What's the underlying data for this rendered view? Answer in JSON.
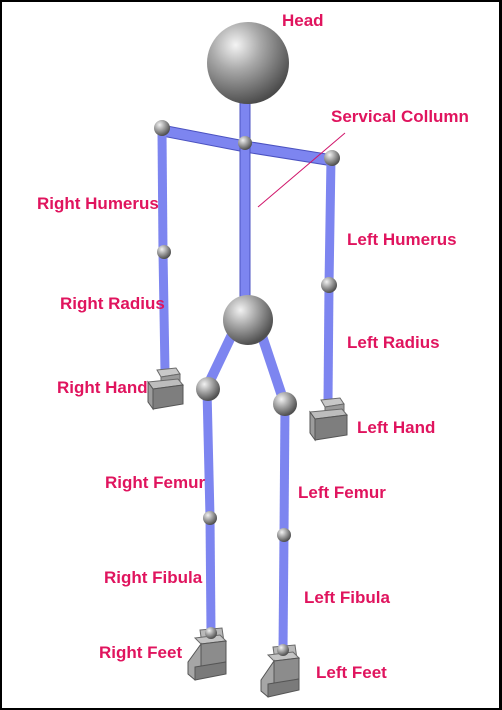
{
  "colors": {
    "label": "#e0145e",
    "bone": "#7d85f0",
    "bone_edge": "#4b52c0",
    "joint_light": "#e6e6e6",
    "joint_dark": "#5d5d5d",
    "leader_line": "#d0146a",
    "frame": "#000000",
    "background": "#ffffff"
  },
  "labels": {
    "head": "Head",
    "servical_collumn": "Servical Collumn",
    "right_humerus": "Right Humerus",
    "left_humerus": "Left Humerus",
    "right_radius": "Right Radius",
    "left_radius": "Left Radius",
    "right_hand": "Right Hand",
    "left_hand": "Left Hand",
    "right_femur": "Right Femur",
    "left_femur": "Left Femur",
    "right_fibula": "Right Fibula",
    "left_fibula": "Left Fibula",
    "right_feet": "Right Feet",
    "left_feet": "Left Feet"
  }
}
